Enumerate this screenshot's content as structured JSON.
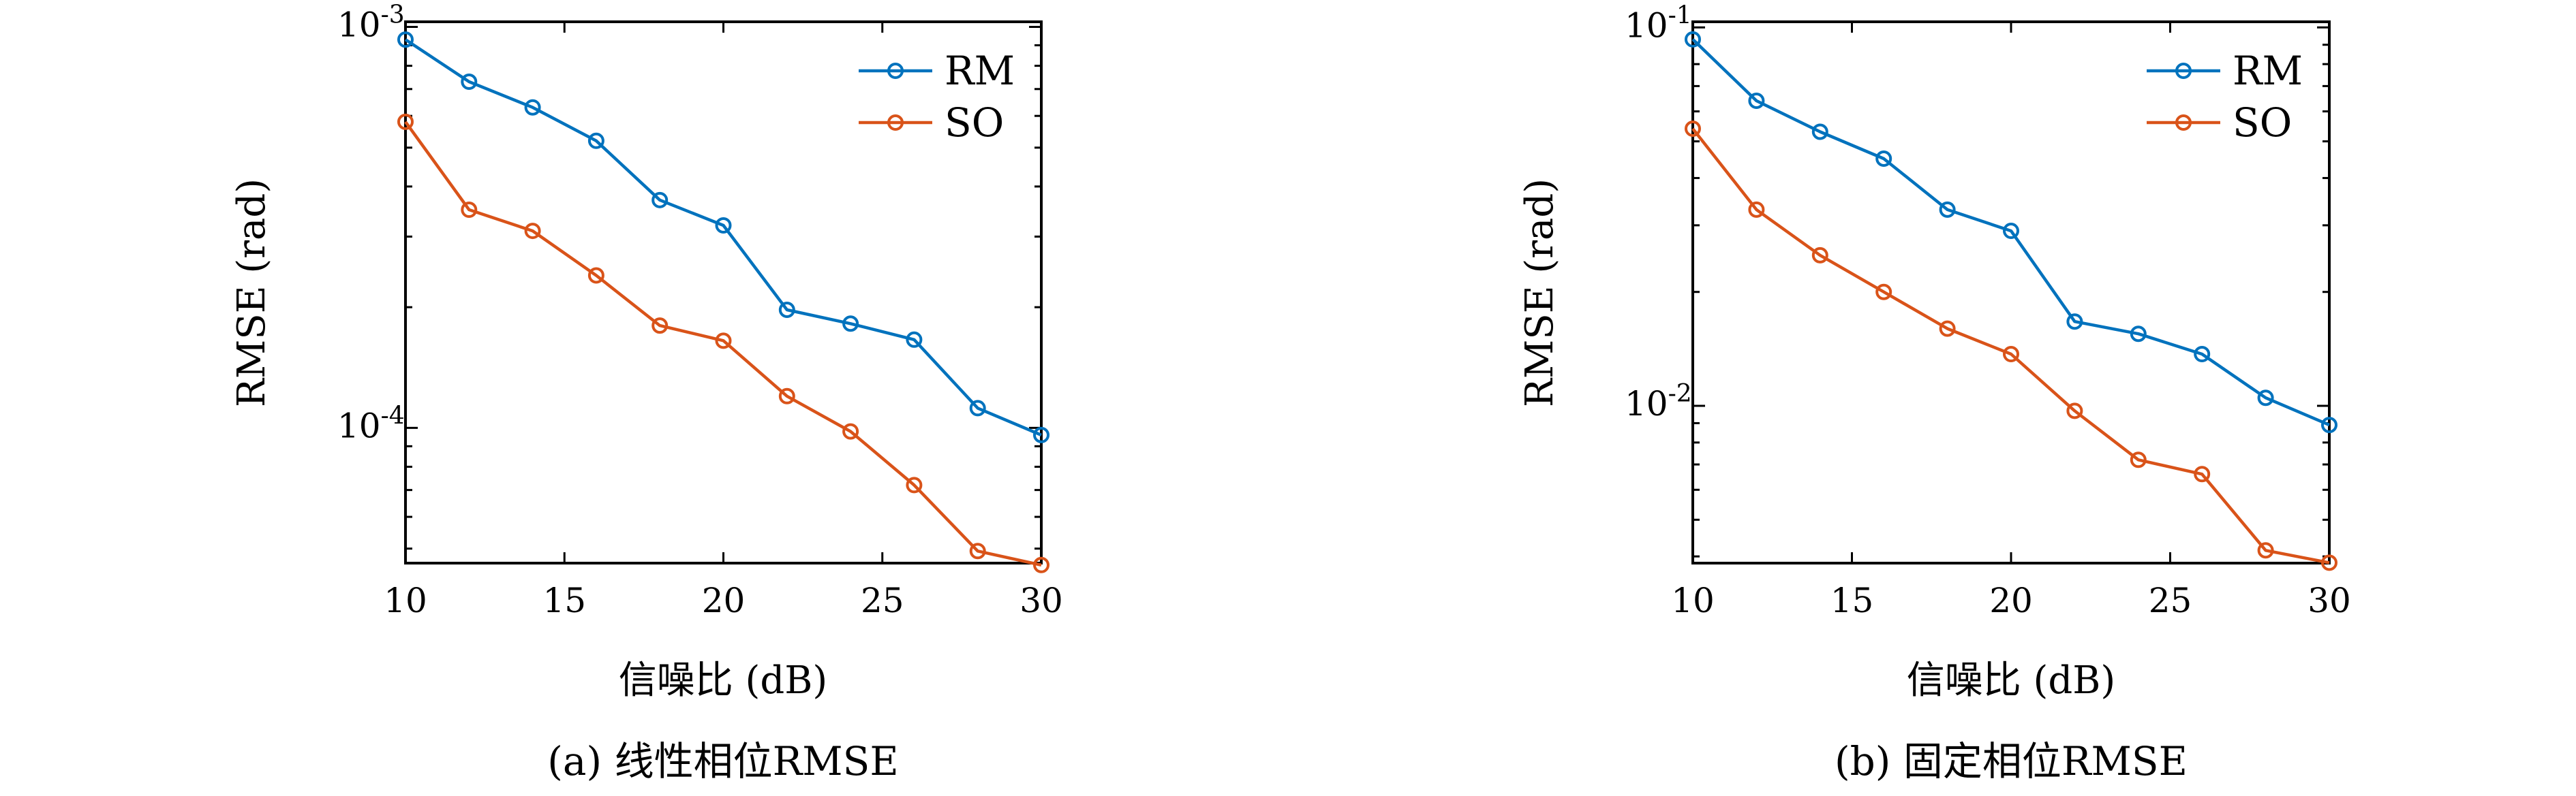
{
  "chart_data": [
    {
      "type": "line",
      "caption": "(a) 线性相位RMSE",
      "xlabel": "信噪比 (dB)",
      "ylabel": "RMSE (rad)",
      "yscale": "log",
      "xlim": [
        10,
        30
      ],
      "ylim": [
        4.6e-05,
        0.00103
      ],
      "xticks": [
        "10",
        "15",
        "20",
        "25",
        "30"
      ],
      "xtick_values": [
        10,
        15,
        20,
        25,
        30
      ],
      "yticks": [
        {
          "base": "10",
          "exp": "-3"
        },
        {
          "base": "10",
          "exp": "-4"
        }
      ],
      "ytick_values": [
        0.001,
        0.0001
      ],
      "legend_position": "top-right",
      "x": [
        10,
        12,
        14,
        16,
        18,
        20,
        22,
        24,
        26,
        28,
        30
      ],
      "series": [
        {
          "name": "RM",
          "color": "#0072BD",
          "values": [
            0.00093,
            0.00073,
            0.00063,
            0.00052,
            0.00037,
            0.00032,
            0.000197,
            0.000182,
            0.000166,
            0.000112,
            9.6e-05
          ]
        },
        {
          "name": "SO",
          "color": "#D95319",
          "values": [
            0.00058,
            0.00035,
            0.00031,
            0.00024,
            0.00018,
            0.000165,
            0.00012,
            9.8e-05,
            7.2e-05,
            4.93e-05,
            4.55e-05
          ]
        }
      ]
    },
    {
      "type": "line",
      "caption": "(b) 固定相位RMSE",
      "xlabel": "信噪比 (dB)",
      "ylabel": "RMSE (rad)",
      "yscale": "log",
      "xlim": [
        10,
        30
      ],
      "ylim": [
        0.00384,
        0.1035
      ],
      "xticks": [
        "10",
        "15",
        "20",
        "25",
        "30"
      ],
      "xtick_values": [
        10,
        15,
        20,
        25,
        30
      ],
      "yticks": [
        {
          "base": "10",
          "exp": "-1"
        },
        {
          "base": "10",
          "exp": "-2"
        }
      ],
      "ytick_values": [
        0.1,
        0.01
      ],
      "legend_position": "top-right",
      "x": [
        10,
        12,
        14,
        16,
        18,
        20,
        22,
        24,
        26,
        28,
        30
      ],
      "series": [
        {
          "name": "RM",
          "color": "#0072BD",
          "values": [
            0.093,
            0.064,
            0.053,
            0.045,
            0.033,
            0.029,
            0.0167,
            0.0155,
            0.0137,
            0.0105,
            0.0089
          ]
        },
        {
          "name": "SO",
          "color": "#D95319",
          "values": [
            0.054,
            0.033,
            0.025,
            0.02,
            0.016,
            0.0137,
            0.0097,
            0.0072,
            0.0066,
            0.00415,
            0.00385
          ]
        }
      ]
    }
  ]
}
